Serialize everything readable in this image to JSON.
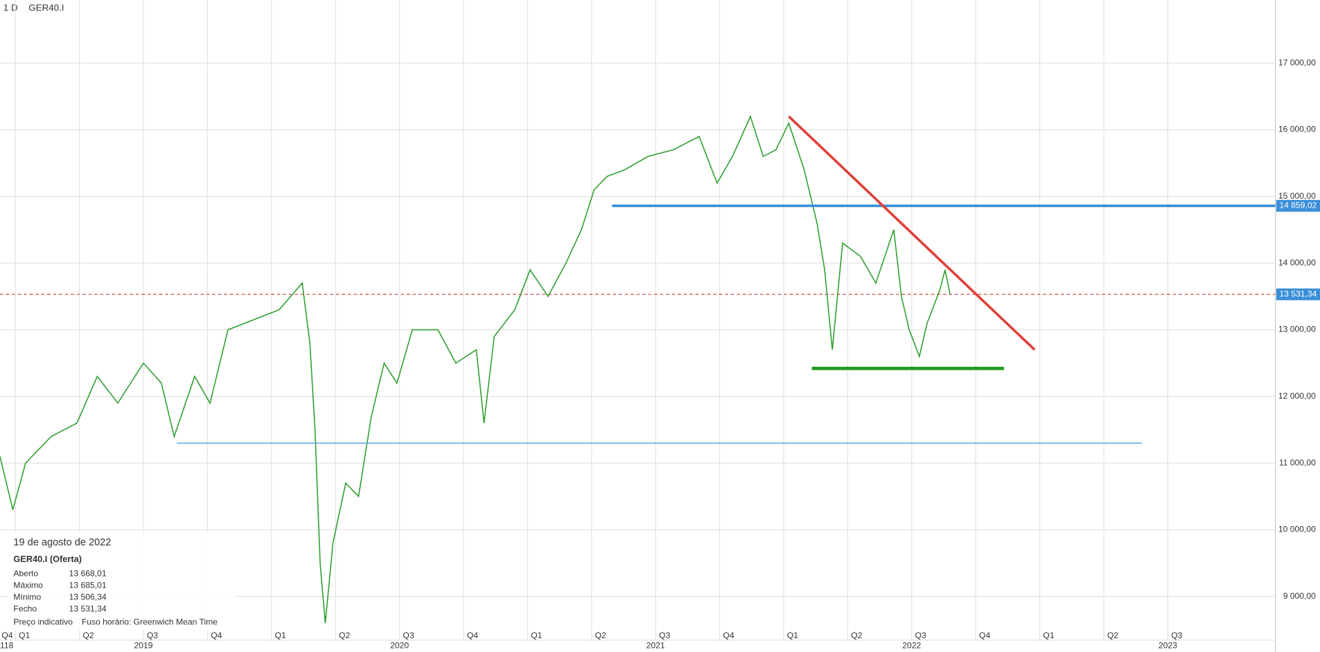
{
  "chart_data": {
    "type": "line",
    "period": "1 D",
    "symbol": "GER40.I",
    "xlim": [
      2018.94,
      2023.92
    ],
    "ylim": [
      8520,
      17946
    ],
    "grid": true,
    "xticks": [
      {
        "value": 2018.75,
        "label": "Q4"
      },
      {
        "value": 2019.0,
        "label": "Q1"
      },
      {
        "value": 2019.25,
        "label": "Q2"
      },
      {
        "value": 2019.5,
        "label": "Q3"
      },
      {
        "value": 2019.75,
        "label": "Q4"
      },
      {
        "value": 2020.0,
        "label": "Q1"
      },
      {
        "value": 2020.25,
        "label": "Q2"
      },
      {
        "value": 2020.5,
        "label": "Q3"
      },
      {
        "value": 2020.75,
        "label": "Q4"
      },
      {
        "value": 2021.0,
        "label": "Q1"
      },
      {
        "value": 2021.25,
        "label": "Q2"
      },
      {
        "value": 2021.5,
        "label": "Q3"
      },
      {
        "value": 2021.75,
        "label": "Q4"
      },
      {
        "value": 2022.0,
        "label": "Q1"
      },
      {
        "value": 2022.25,
        "label": "Q2"
      },
      {
        "value": 2022.5,
        "label": "Q3"
      },
      {
        "value": 2022.75,
        "label": "Q4"
      },
      {
        "value": 2023.0,
        "label": "Q1"
      },
      {
        "value": 2023.25,
        "label": "Q2"
      },
      {
        "value": 2023.5,
        "label": "Q3"
      }
    ],
    "year_labels": [
      {
        "value": 2018.5,
        "label": "118"
      },
      {
        "value": 2019.5,
        "label": "2019"
      },
      {
        "value": 2020.5,
        "label": "2020"
      },
      {
        "value": 2021.5,
        "label": "2021"
      },
      {
        "value": 2022.5,
        "label": "2022"
      },
      {
        "value": 2023.5,
        "label": "2023"
      }
    ],
    "yticks": [
      {
        "value": 9000,
        "label": "9 000,00"
      },
      {
        "value": 10000,
        "label": "10 000,00"
      },
      {
        "value": 11000,
        "label": "11 000,00"
      },
      {
        "value": 12000,
        "label": "12 000,00"
      },
      {
        "value": 13000,
        "label": "13 000,00"
      },
      {
        "value": 14000,
        "label": "14 000,00"
      },
      {
        "value": 15000,
        "label": "15 000,00"
      },
      {
        "value": 16000,
        "label": "16 000,00"
      },
      {
        "value": 17000,
        "label": "17 000,00"
      }
    ],
    "series": [
      {
        "name": "GER40.I",
        "color": "#2e9e2e",
        "x": [
          2018.94,
          2018.99,
          2019.04,
          2019.14,
          2019.24,
          2019.32,
          2019.4,
          2019.5,
          2019.57,
          2019.62,
          2019.7,
          2019.76,
          2019.83,
          2019.93,
          2020.03,
          2020.12,
          2020.15,
          2020.17,
          2020.19,
          2020.21,
          2020.24,
          2020.29,
          2020.34,
          2020.39,
          2020.44,
          2020.49,
          2020.55,
          2020.65,
          2020.72,
          2020.8,
          2020.83,
          2020.87,
          2020.95,
          2021.01,
          2021.08,
          2021.15,
          2021.21,
          2021.26,
          2021.31,
          2021.38,
          2021.47,
          2021.57,
          2021.67,
          2021.74,
          2021.8,
          2021.87,
          2021.92,
          2021.97,
          2022.02,
          2022.08,
          2022.13,
          2022.16,
          2022.19,
          2022.23,
          2022.3,
          2022.36,
          2022.43,
          2022.46,
          2022.49,
          2022.53,
          2022.56,
          2022.61,
          2022.63,
          2022.65
        ],
        "values": [
          11100,
          10300,
          11000,
          11400,
          11600,
          12300,
          11900,
          12500,
          12200,
          11400,
          12300,
          11900,
          13000,
          13150,
          13300,
          13700,
          12800,
          11500,
          9500,
          8600,
          9800,
          10700,
          10500,
          11700,
          12500,
          12200,
          13000,
          13000,
          12500,
          12700,
          11600,
          12900,
          13300,
          13900,
          13500,
          14000,
          14500,
          15100,
          15300,
          15400,
          15600,
          15700,
          15900,
          15200,
          15600,
          16200,
          15600,
          15700,
          16100,
          15400,
          14600,
          13900,
          12700,
          14300,
          14100,
          13700,
          14500,
          13500,
          13000,
          12600,
          13100,
          13600,
          13900,
          13531.34
        ]
      }
    ],
    "drawings": [
      {
        "color": "#3b8fd9",
        "width": 3,
        "x": [
          2021.33,
          2023.92
        ],
        "y": [
          14859.02,
          14859.02
        ],
        "label": "14 859,02"
      },
      {
        "color": "#5aa6e6",
        "width": 1.2,
        "x": [
          2019.63,
          2023.4
        ],
        "y": [
          11300,
          11300
        ]
      },
      {
        "color": "#1f9e1f",
        "width": 4,
        "x": [
          2022.11,
          2022.86
        ],
        "y": [
          12420,
          12420
        ]
      },
      {
        "color": "#e0403a",
        "width": 3,
        "x": [
          2022.02,
          2022.98
        ],
        "y": [
          16200,
          12700
        ]
      }
    ],
    "last_price": {
      "value": 13531.34,
      "label": "13 531,34",
      "color": "#e05050",
      "box_color": "#3b8fd9"
    },
    "info": {
      "date": "19 de agosto de 2022",
      "instrument": "GER40.I (Oferta)",
      "rows": [
        [
          "Aberto",
          "13 668,01"
        ],
        [
          "Máximo",
          "13 685,01"
        ],
        [
          "Mínimo",
          "13 506,34"
        ],
        [
          "Fecho",
          "13 531,34"
        ]
      ],
      "footer": [
        "Preço indicativo",
        "Fuso horário: Greenwich Mean Time"
      ]
    }
  }
}
